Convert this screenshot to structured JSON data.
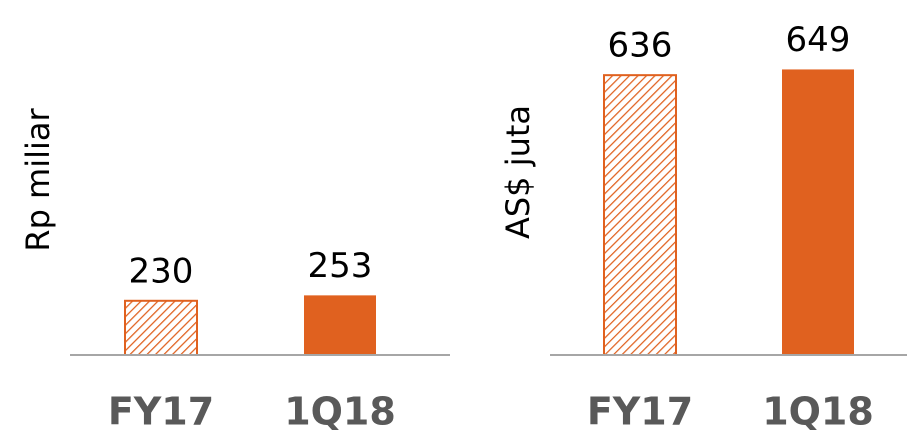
{
  "chart_data": [
    {
      "type": "bar",
      "ylabel": "Rp miliar",
      "categories": [
        "FY17",
        "1Q18"
      ],
      "values": [
        230,
        253
      ],
      "color": "#e0611f",
      "bar_styles": [
        "hatched",
        "solid"
      ],
      "ylim": [
        0,
        1400
      ]
    },
    {
      "type": "bar",
      "ylabel": "AS$ juta",
      "categories": [
        "FY17",
        "1Q18"
      ],
      "values": [
        636,
        649
      ],
      "color": "#e0611f",
      "bar_styles": [
        "hatched",
        "solid"
      ],
      "ylim": [
        0,
        750
      ]
    }
  ]
}
